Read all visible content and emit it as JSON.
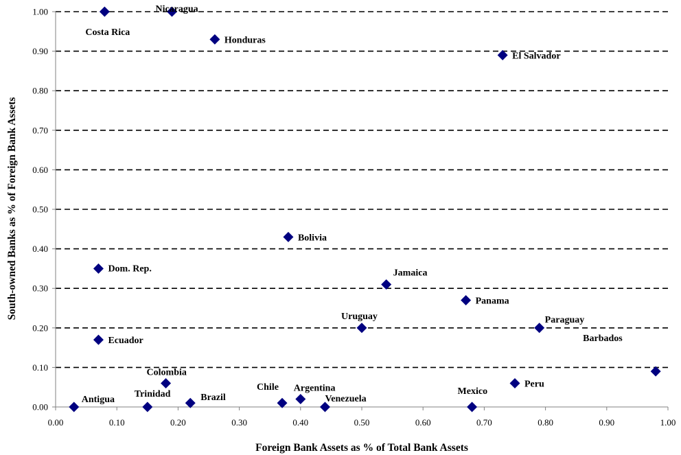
{
  "chart_data": {
    "type": "scatter",
    "xlabel": "Foreign Bank Assets as % of Total Bank Assets",
    "ylabel": "South-owned Banks as % of Foreign Bank Assets",
    "xlim": [
      0,
      1
    ],
    "ylim": [
      0,
      1
    ],
    "x_ticks": [
      "0.00",
      "0.10",
      "0.20",
      "0.30",
      "0.40",
      "0.50",
      "0.60",
      "0.70",
      "0.80",
      "0.90",
      "1.00"
    ],
    "y_ticks": [
      "0.00",
      "0.10",
      "0.20",
      "0.30",
      "0.40",
      "0.50",
      "0.60",
      "0.70",
      "0.80",
      "0.90",
      "1.00"
    ],
    "grid": "horizontal dashed",
    "marker": "diamond",
    "marker_color": "#000080",
    "points": [
      {
        "label": "Costa Rica",
        "x": 0.08,
        "y": 1.0
      },
      {
        "label": "Nicaragua",
        "x": 0.19,
        "y": 1.0
      },
      {
        "label": "Honduras",
        "x": 0.26,
        "y": 0.93
      },
      {
        "label": "El Salvador",
        "x": 0.73,
        "y": 0.89
      },
      {
        "label": "Bolivia",
        "x": 0.38,
        "y": 0.43
      },
      {
        "label": "Dom. Rep.",
        "x": 0.07,
        "y": 0.35
      },
      {
        "label": "Jamaica",
        "x": 0.54,
        "y": 0.31
      },
      {
        "label": "Panama",
        "x": 0.67,
        "y": 0.27
      },
      {
        "label": "Uruguay",
        "x": 0.5,
        "y": 0.2
      },
      {
        "label": "Paraguay",
        "x": 0.79,
        "y": 0.2
      },
      {
        "label": "Ecuador",
        "x": 0.07,
        "y": 0.17
      },
      {
        "label": "Barbados",
        "x": 0.98,
        "y": 0.09
      },
      {
        "label": "Colombia",
        "x": 0.18,
        "y": 0.06
      },
      {
        "label": "Peru",
        "x": 0.75,
        "y": 0.06
      },
      {
        "label": "Argentina",
        "x": 0.4,
        "y": 0.02
      },
      {
        "label": "Brazil",
        "x": 0.22,
        "y": 0.01
      },
      {
        "label": "Chile",
        "x": 0.37,
        "y": 0.01
      },
      {
        "label": "Antigua",
        "x": 0.03,
        "y": 0.0
      },
      {
        "label": "Trinidad",
        "x": 0.15,
        "y": 0.0
      },
      {
        "label": "Venezuela",
        "x": 0.44,
        "y": 0.0
      },
      {
        "label": "Mexico",
        "x": 0.68,
        "y": 0.0
      }
    ]
  }
}
